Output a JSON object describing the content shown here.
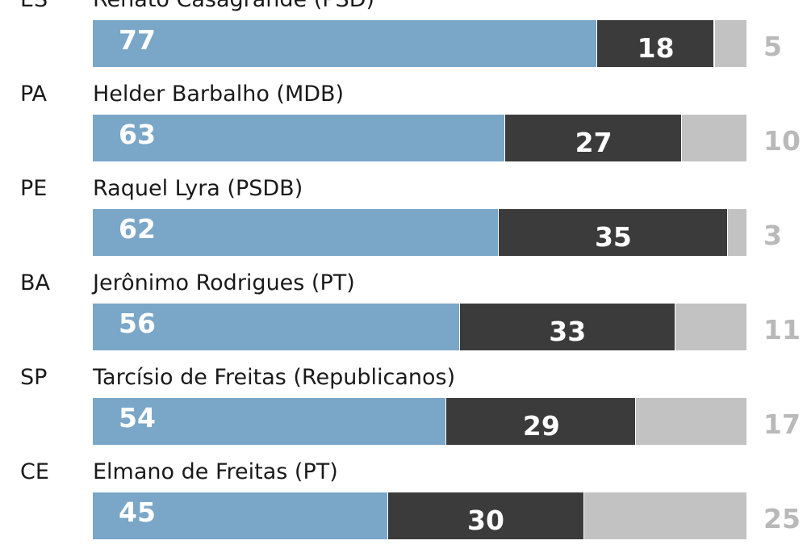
{
  "chart_data": {
    "type": "bar",
    "stacked": true,
    "orientation": "horizontal",
    "scale_max": 100,
    "colors": [
      "#7aa6c8",
      "#3b3b3b",
      "#c2c2c2"
    ],
    "rows": [
      {
        "state": "ES",
        "candidate": "Renato Casagrande (PSD)",
        "values": [
          77,
          18,
          5
        ]
      },
      {
        "state": "PA",
        "candidate": "Helder Barbalho (MDB)",
        "values": [
          63,
          27,
          10
        ]
      },
      {
        "state": "PE",
        "candidate": "Raquel Lyra (PSDB)",
        "values": [
          62,
          35,
          3
        ]
      },
      {
        "state": "BA",
        "candidate": "Jerônimo Rodrigues (PT)",
        "values": [
          56,
          33,
          11
        ]
      },
      {
        "state": "SP",
        "candidate": "Tarcísio de Freitas (Republicanos)",
        "values": [
          54,
          29,
          17
        ]
      },
      {
        "state": "CE",
        "candidate": "Elmano de Freitas (PT)",
        "values": [
          45,
          30,
          25
        ]
      }
    ]
  }
}
